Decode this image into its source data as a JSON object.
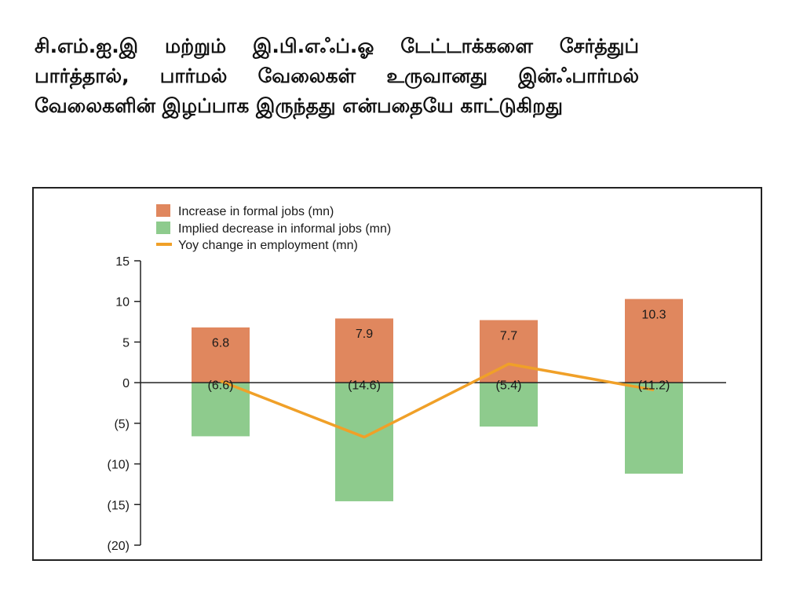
{
  "headline": "சி.எம்.ஐ.இ மற்றும் இ.பி.எஃப்.ஓ டேட்டாக்களை சேர்த்துப் பார்த்தால், பார்மல் வேலைகள் உருவானது இன்ஃபார்மல் வேலைகளின் இழப்பாக இருந்தது என்பதையே காட்டுகிறது",
  "colors": {
    "formal": "#e0875e",
    "informal": "#8ecb8d",
    "line": "#f0a028",
    "axis": "#222222"
  },
  "chart_data": {
    "type": "bar",
    "title": "",
    "xlabel": "",
    "ylabel": "",
    "categories": [
      "",
      "",
      "",
      ""
    ],
    "ylim": [
      -20,
      15
    ],
    "yticks": [
      15,
      10,
      5,
      0,
      -5,
      -10,
      -15,
      -20
    ],
    "ytick_labels": [
      "15",
      "10",
      "5",
      "0",
      "(5)",
      "(10)",
      "(15)",
      "(20)"
    ],
    "grid": false,
    "legend_position": "top-left",
    "series": [
      {
        "name": "Increase in formal jobs (mn)",
        "kind": "bar",
        "values": [
          6.8,
          7.9,
          7.7,
          10.3
        ],
        "labels": [
          "6.8",
          "7.9",
          "7.7",
          "10.3"
        ]
      },
      {
        "name": "Implied decrease in informal jobs (mn)",
        "kind": "bar",
        "values": [
          -6.6,
          -14.6,
          -5.4,
          -11.2
        ],
        "labels": [
          "(6.6)",
          "(14.6)",
          "(5.4)",
          "(11.2)"
        ]
      },
      {
        "name": "Yoy change in employment (mn)",
        "kind": "line",
        "values": [
          0.2,
          -6.7,
          2.3,
          -0.9
        ]
      }
    ]
  }
}
